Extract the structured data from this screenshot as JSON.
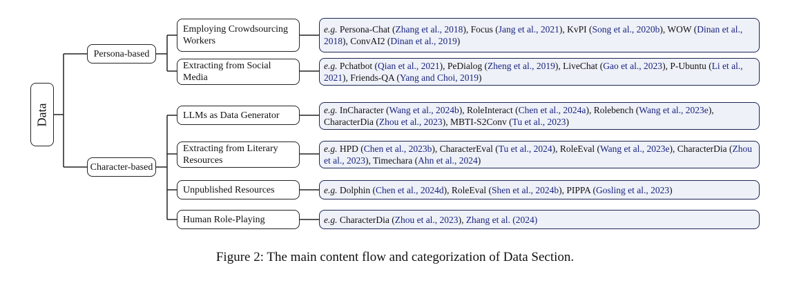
{
  "root": {
    "label": "Data"
  },
  "branches": [
    {
      "label": "Persona-based",
      "leaves": [
        {
          "label": "Employing Crowdsourcing Workers",
          "examples": [
            {
              "name": "Persona-Chat",
              "cite": "Zhang et al., 2018"
            },
            {
              "name": "Focus",
              "cite": "Jang et al., 2021"
            },
            {
              "name": "KvPI",
              "cite": "Song et al., 2020b"
            },
            {
              "name": "WOW",
              "cite": "Dinan et al., 2018"
            },
            {
              "name": "ConvAI2",
              "cite": "Dinan et al., 2019"
            }
          ]
        },
        {
          "label": "Extracting from Social Media",
          "examples": [
            {
              "name": "Pchatbot",
              "cite": "Qian et al., 2021"
            },
            {
              "name": "PeDialog",
              "cite": "Zheng et al., 2019"
            },
            {
              "name": "LiveChat",
              "cite": "Gao et al., 2023"
            },
            {
              "name": "P-Ubuntu",
              "cite": "Li et al., 2021"
            },
            {
              "name": "Friends-QA",
              "cite": "Yang and Choi, 2019"
            }
          ]
        }
      ]
    },
    {
      "label": "Character-based",
      "leaves": [
        {
          "label": "LLMs as Data Generator",
          "examples": [
            {
              "name": "InCharacter",
              "cite": "Wang et al., 2024b"
            },
            {
              "name": "RoleInteract",
              "cite": "Chen et al., 2024a"
            },
            {
              "name": "Rolebench",
              "cite": "Wang et al., 2023e"
            },
            {
              "name": "CharacterDia",
              "cite": "Zhou et al., 2023"
            },
            {
              "name": "MBTI-S2Conv",
              "cite": "Tu et al., 2023"
            }
          ]
        },
        {
          "label": "Extracting from Literary Resources",
          "examples": [
            {
              "name": "HPD",
              "cite": "Chen et al., 2023b"
            },
            {
              "name": "CharacterEval",
              "cite": "Tu et al., 2024"
            },
            {
              "name": "RoleEval",
              "cite": "Wang et al., 2023e"
            },
            {
              "name": "CharacterDia",
              "cite": "Zhou et al., 2023"
            },
            {
              "name": "Timechara",
              "cite": "Ahn et al., 2024"
            }
          ]
        },
        {
          "label": "Unpublished Resources",
          "examples": [
            {
              "name": "Dolphin",
              "cite": "Chen et al., 2024d"
            },
            {
              "name": "RoleEval",
              "cite": "Shen et al., 2024b"
            },
            {
              "name": "PIPPA",
              "cite": "Gosling et al., 2023"
            }
          ]
        },
        {
          "label": "Human Role-Playing",
          "examples": [
            {
              "name": "CharacterDia",
              "cite": "Zhou et al., 2023"
            },
            {
              "name": "Zhang et al.",
              "cite": "2024",
              "plain_author": true
            }
          ]
        }
      ]
    }
  ],
  "eg_prefix": "e.g.",
  "caption": "Figure 2: The main content flow and categorization of Data Section.",
  "colors": {
    "cite": "#1a237e",
    "example_bg": "#eef1f8",
    "example_border": "#1b2452",
    "line": "#222222"
  }
}
